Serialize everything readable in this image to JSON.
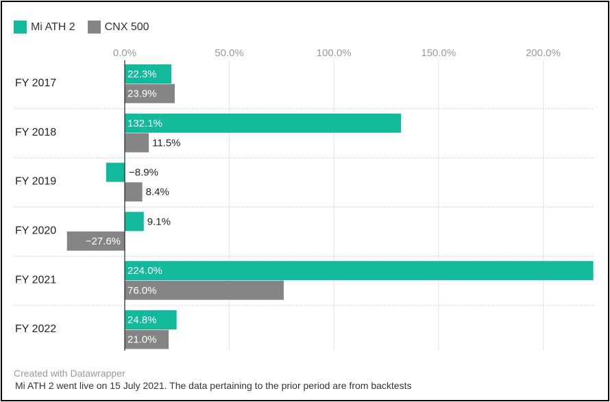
{
  "legend": [
    {
      "name": "Mi ATH 2",
      "color": "#13b99b"
    },
    {
      "name": "CNX 500",
      "color": "#858585"
    }
  ],
  "chart_data": {
    "type": "bar",
    "orientation": "horizontal",
    "categories": [
      "FY 2017",
      "FY 2018",
      "FY 2019",
      "FY 2020",
      "FY 2021",
      "FY 2022"
    ],
    "series": [
      {
        "name": "Mi ATH 2",
        "values": [
          22.3,
          132.1,
          -8.9,
          9.1,
          224.0,
          24.8
        ],
        "labels": [
          "22.3%",
          "132.1%",
          "−8.9%",
          "9.1%",
          "224.0%",
          "24.8%"
        ]
      },
      {
        "name": "CNX 500",
        "values": [
          23.9,
          11.5,
          8.4,
          -27.6,
          76.0,
          21.0
        ],
        "labels": [
          "23.9%",
          "11.5%",
          "8.4%",
          "−27.6%",
          "76.0%",
          "21.0%"
        ]
      }
    ],
    "x_ticks": [
      0,
      50,
      100,
      150,
      200
    ],
    "x_tick_labels": [
      "0.0%",
      "50.0%",
      "100.0%",
      "150.0%",
      "200.0%"
    ],
    "xlim": [
      -27.6,
      224.0
    ],
    "grid": true,
    "legend_position": "top-left"
  },
  "footer": {
    "credit": "Created with Datawrapper",
    "note": "Mi ATH 2 went live on 15 July 2021. The data pertaining to the prior period are from backtests"
  }
}
